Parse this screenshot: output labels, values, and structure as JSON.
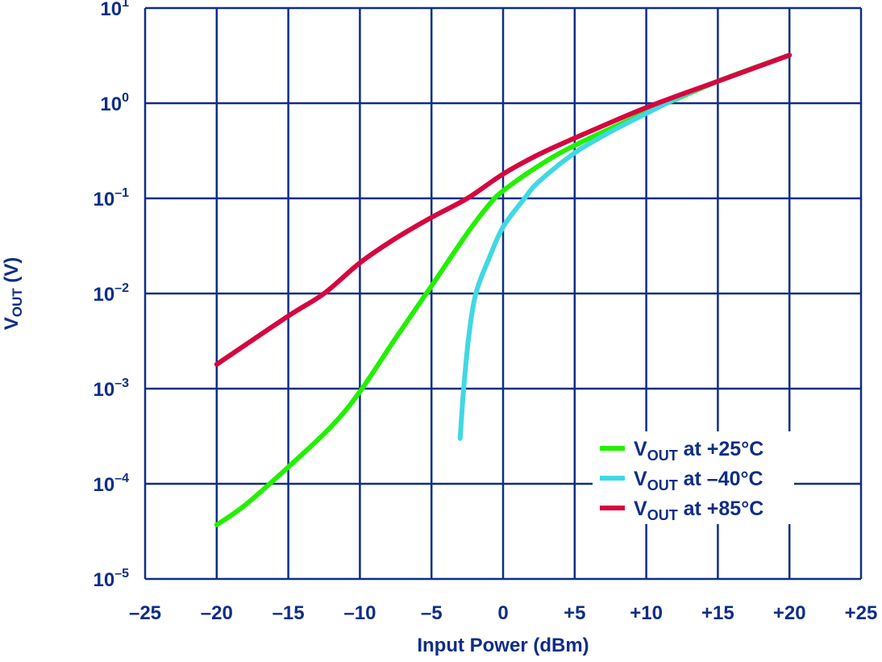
{
  "chart_data": {
    "type": "line",
    "title": "",
    "xlabel": "Input Power (dBm)",
    "ylabel": "VOUT (V)",
    "ylabel_main": "V",
    "ylabel_sub": "OUT",
    "ylabel_rest": " (V)",
    "xlim": [
      -25,
      25
    ],
    "ylim": [
      1e-05,
      10
    ],
    "yscale": "log",
    "grid": true,
    "x_ticks": [
      -25,
      -20,
      -15,
      -10,
      -5,
      0,
      5,
      10,
      15,
      20,
      25
    ],
    "x_tick_labels": [
      "–25",
      "–20",
      "–15",
      "–10",
      "–5",
      "0",
      "+5",
      "+10",
      "+15",
      "+20",
      "+25"
    ],
    "y_ticks": [
      1,
      0,
      -1,
      -2,
      -3,
      -4,
      -5
    ],
    "y_tick_labels": [
      {
        "base": "10",
        "exp": "1"
      },
      {
        "base": "10",
        "exp": "0"
      },
      {
        "base": "10",
        "exp": "–1"
      },
      {
        "base": "10",
        "exp": "–2"
      },
      {
        "base": "10",
        "exp": "–3"
      },
      {
        "base": "10",
        "exp": "–4"
      },
      {
        "base": "10",
        "exp": "–5"
      }
    ],
    "legend_position": "bottom-right",
    "colors": {
      "axis": "#0e2e86",
      "grid": "#0e2e86"
    },
    "series": [
      {
        "name": "VOUT at +25°C",
        "label_main": "V",
        "label_sub": "OUT",
        "label_rest": " at +25°C",
        "color": "#22f000",
        "x": [
          -20,
          -18,
          -15,
          -12,
          -10,
          -7.5,
          -5,
          -2.5,
          -1,
          0,
          2.5,
          5,
          10,
          15,
          20
        ],
        "y": [
          3.7e-05,
          6e-05,
          0.00015,
          0.0004,
          0.00093,
          0.0034,
          0.012,
          0.043,
          0.085,
          0.12,
          0.22,
          0.36,
          0.8,
          1.7,
          3.2
        ]
      },
      {
        "name": "VOUT at –40°C",
        "label_main": "V",
        "label_sub": "OUT",
        "label_rest": " at –40°C",
        "color": "#40d8e4",
        "x": [
          -3.0,
          -2.9,
          -2.75,
          -2.4,
          -1.9,
          -1.0,
          0,
          1.5,
          2.5,
          5,
          7.5,
          10,
          12.5,
          15,
          20
        ],
        "y": [
          0.0003,
          0.0005,
          0.001,
          0.0035,
          0.01,
          0.023,
          0.05,
          0.1,
          0.15,
          0.3,
          0.5,
          0.78,
          1.2,
          1.7,
          3.2
        ]
      },
      {
        "name": "VOUT at +85°C",
        "label_main": "V",
        "label_sub": "OUT",
        "label_rest": " at +85°C",
        "color": "#d6063f",
        "x": [
          -20,
          -15,
          -12.5,
          -10,
          -7.5,
          -5,
          -2.5,
          0,
          2.5,
          5,
          10,
          15,
          20
        ],
        "y": [
          0.0018,
          0.0058,
          0.01,
          0.021,
          0.038,
          0.063,
          0.1,
          0.18,
          0.29,
          0.43,
          0.9,
          1.7,
          3.2
        ]
      }
    ]
  }
}
